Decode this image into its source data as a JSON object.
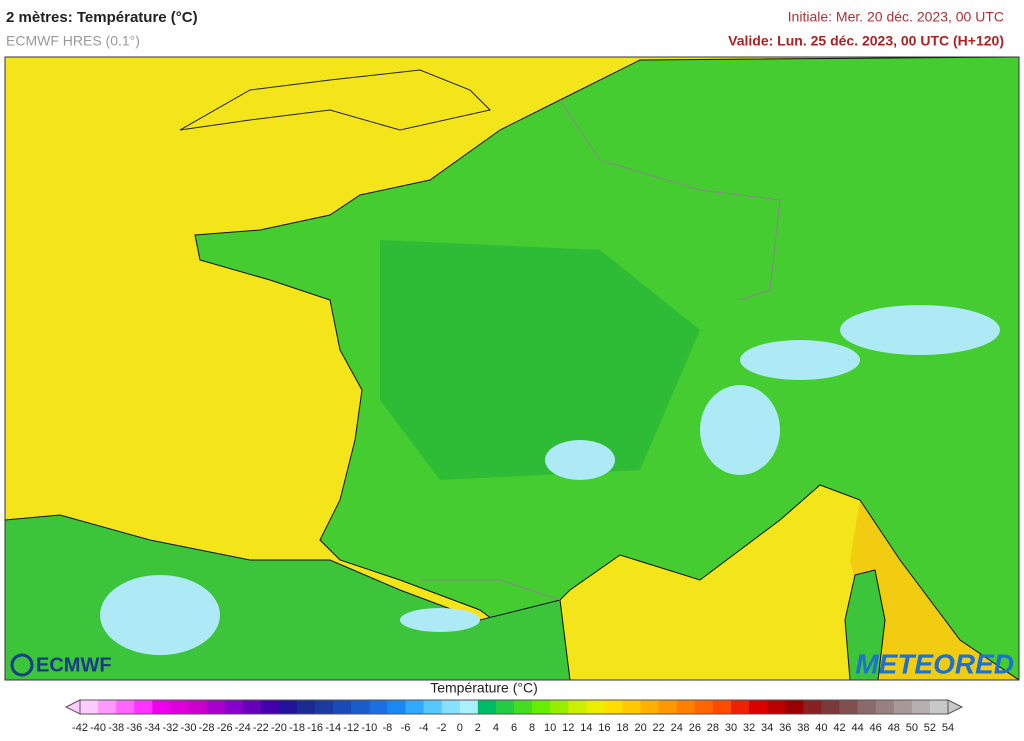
{
  "header": {
    "title": "2 mètres: Température (°C)",
    "model": "ECMWF HRES (0.1°)",
    "initial": "Initiale: Mer. 20 déc. 2023, 00 UTC",
    "valid": "Valide: Lun. 25 déc. 2023, 00 UTC (H+120)"
  },
  "logos": {
    "left": "ECMWF",
    "right": "METEORED"
  },
  "legend": {
    "title": "Température (°C)",
    "ticks": [
      -42,
      -40,
      -38,
      -36,
      -34,
      -32,
      -30,
      -28,
      -26,
      -24,
      -22,
      -20,
      -18,
      -16,
      -14,
      -12,
      -10,
      -8,
      -6,
      -4,
      -2,
      0,
      2,
      4,
      6,
      8,
      10,
      12,
      14,
      16,
      18,
      20,
      22,
      24,
      26,
      28,
      30,
      32,
      34,
      36,
      38,
      40,
      42,
      44,
      46,
      48,
      50,
      52,
      54
    ],
    "colors": [
      "#ffccff",
      "#ff99ff",
      "#ff66ff",
      "#ff33ff",
      "#ee00ee",
      "#dd00dd",
      "#cc00cc",
      "#aa00cc",
      "#8800cc",
      "#6600bb",
      "#4400aa",
      "#22119a",
      "#1a2a90",
      "#1a3aa0",
      "#1a4ab8",
      "#1a5ccc",
      "#1a70e0",
      "#1a88f0",
      "#33a8ff",
      "#55c8ff",
      "#88e0ff",
      "#aaf0ff",
      "#00bb66",
      "#22cc44",
      "#44dd22",
      "#66ee00",
      "#99ee00",
      "#ccee00",
      "#eeee00",
      "#ffdd00",
      "#ffc800",
      "#ffb000",
      "#ff9800",
      "#ff8000",
      "#ff6600",
      "#ff4a00",
      "#ee2200",
      "#dd0000",
      "#bb0000",
      "#990000",
      "#882222",
      "#7a3a3a",
      "#805050",
      "#8a6a6a",
      "#998080",
      "#a89898",
      "#b8b0b0",
      "#c8c8c8"
    ]
  }
}
